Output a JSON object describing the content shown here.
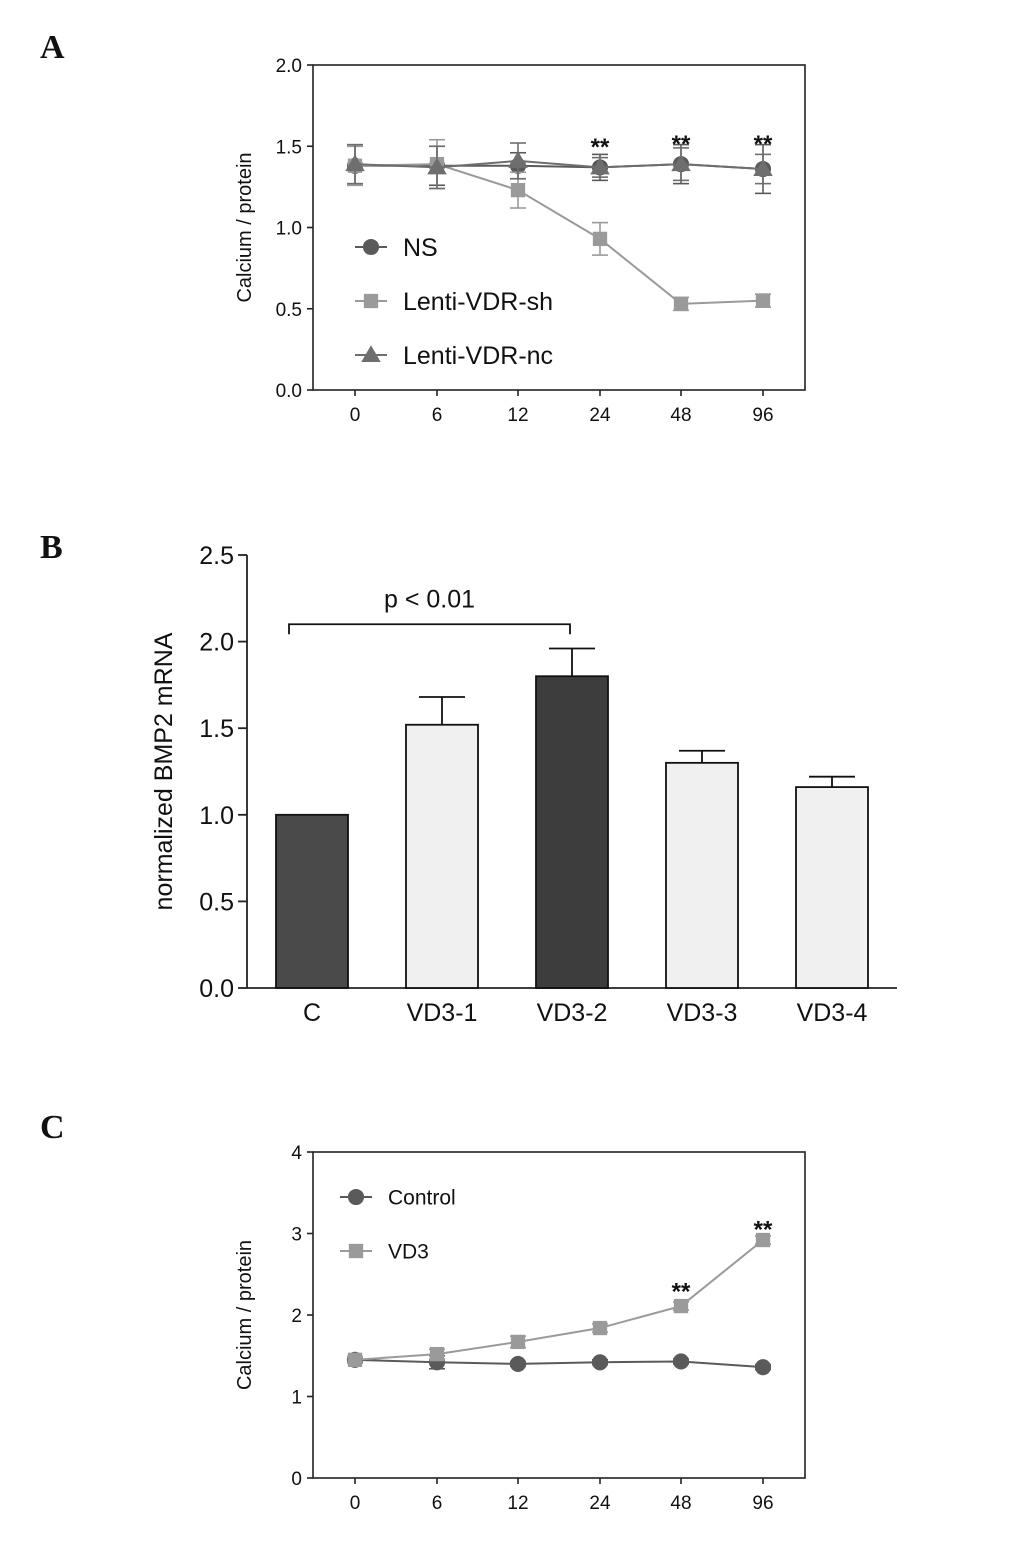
{
  "chart_data": [
    {
      "panel": "A",
      "type": "line",
      "ylabel": "Calcium / protein",
      "xlabel": "",
      "categories": [
        "0",
        "6",
        "12",
        "24",
        "48",
        "96"
      ],
      "ylim": [
        0,
        2.0
      ],
      "yticks": [
        "0.0",
        "0.5",
        "1.0",
        "1.5",
        "2.0"
      ],
      "legend_position": "center-left",
      "series": [
        {
          "name": "NS",
          "marker": "circle",
          "color": "#5a5a5a",
          "values": [
            1.38,
            1.38,
            1.38,
            1.37,
            1.39,
            1.36
          ],
          "errors": [
            0.12,
            0.12,
            0.08,
            0.08,
            0.12,
            0.15
          ]
        },
        {
          "name": "Lenti-VDR-sh",
          "marker": "square",
          "color": "#9a9a9a",
          "values": [
            1.38,
            1.39,
            1.23,
            0.93,
            0.53,
            0.55
          ],
          "errors": [
            0.12,
            0.15,
            0.11,
            0.1,
            0.04,
            0.04
          ]
        },
        {
          "name": "Lenti-VDR-nc",
          "marker": "triangle",
          "color": "#6e6e6e",
          "values": [
            1.39,
            1.37,
            1.41,
            1.37,
            1.39,
            1.36
          ],
          "errors": [
            0.12,
            0.13,
            0.11,
            0.06,
            0.1,
            0.09
          ]
        }
      ],
      "annotations": [
        {
          "category": "24",
          "text": "**",
          "y": 1.52
        },
        {
          "category": "48",
          "text": "**",
          "y": 1.54
        },
        {
          "category": "96",
          "text": "**",
          "y": 1.54
        }
      ]
    },
    {
      "panel": "B",
      "type": "bar",
      "ylabel": "normalized BMP2 mRNA",
      "xlabel": "",
      "categories": [
        "C",
        "VD3-1",
        "VD3-2",
        "VD3-3",
        "VD3-4"
      ],
      "values": [
        1.0,
        1.52,
        1.8,
        1.3,
        1.16
      ],
      "errors": [
        0,
        0.16,
        0.16,
        0.07,
        0.06
      ],
      "bar_colors": [
        "#4a4a4a",
        "#f0f0f0",
        "#3d3d3d",
        "#f0f0f0",
        "#f0f0f0"
      ],
      "ylim": [
        0,
        2.5
      ],
      "yticks": [
        "0.0",
        "0.5",
        "1.0",
        "1.5",
        "2.0",
        "2.5"
      ],
      "bracket": {
        "from": "C",
        "to": "VD3-2",
        "text": "p < 0.01",
        "y": 2.1
      }
    },
    {
      "panel": "C",
      "type": "line",
      "ylabel": "Calcium / protein",
      "xlabel": "",
      "categories": [
        "0",
        "6",
        "12",
        "24",
        "48",
        "96"
      ],
      "ylim": [
        0,
        4
      ],
      "yticks": [
        "0",
        "1",
        "2",
        "3",
        "4"
      ],
      "legend_position": "top-left",
      "series": [
        {
          "name": "Control",
          "marker": "circle",
          "color": "#5a5a5a",
          "values": [
            1.45,
            1.42,
            1.4,
            1.42,
            1.43,
            1.36
          ],
          "errors": [
            0.04,
            0.08,
            0.03,
            0.03,
            0.03,
            0.03
          ]
        },
        {
          "name": "VD3",
          "marker": "square",
          "color": "#9a9a9a",
          "values": [
            1.45,
            1.52,
            1.67,
            1.84,
            2.11,
            2.92
          ],
          "errors": [
            0.04,
            0.06,
            0.07,
            0.05,
            0.05,
            0.05
          ]
        }
      ],
      "annotations": [
        {
          "category": "48",
          "text": "**",
          "y": 2.34
        },
        {
          "category": "96",
          "text": "**",
          "y": 3.1
        }
      ]
    }
  ]
}
